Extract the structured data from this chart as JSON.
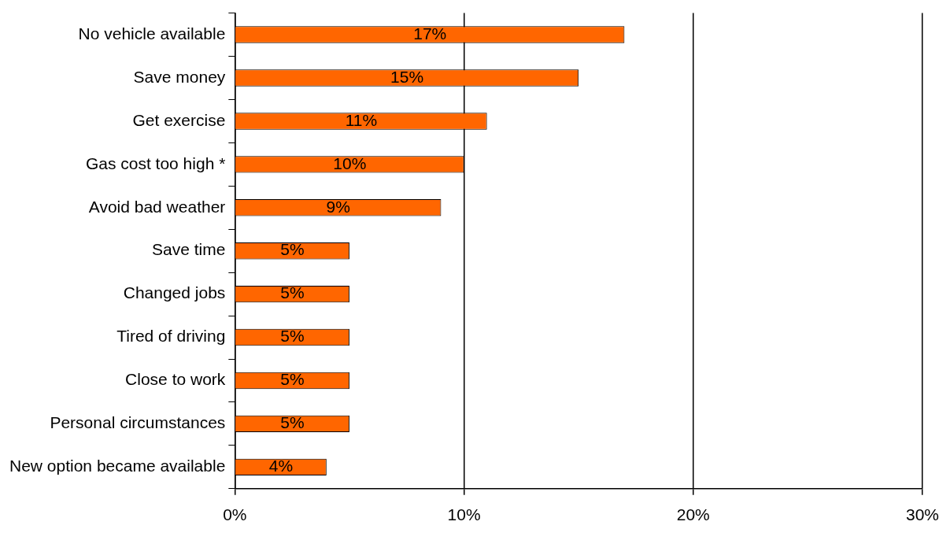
{
  "chart_data": {
    "type": "bar",
    "orientation": "horizontal",
    "categories": [
      "No vehicle available",
      "Save money",
      "Get exercise",
      "Gas cost too high *",
      "Avoid bad weather",
      "Save time",
      "Changed jobs",
      "Tired of driving",
      "Close to work",
      "Personal circumstances",
      "New option became available"
    ],
    "values": [
      17,
      15,
      11,
      10,
      9,
      5,
      5,
      5,
      5,
      5,
      4
    ],
    "value_labels": [
      "17%",
      "15%",
      "11%",
      "10%",
      "9%",
      "5%",
      "5%",
      "5%",
      "5%",
      "5%",
      "4%"
    ],
    "color": "#ff6600",
    "xlim": [
      0,
      30
    ],
    "xticks": [
      {
        "value": 0,
        "label": "0%"
      },
      {
        "value": 10,
        "label": "10%"
      },
      {
        "value": 20,
        "label": "20%"
      },
      {
        "value": 30,
        "label": "30%"
      }
    ],
    "grid": "x",
    "legend": false
  }
}
